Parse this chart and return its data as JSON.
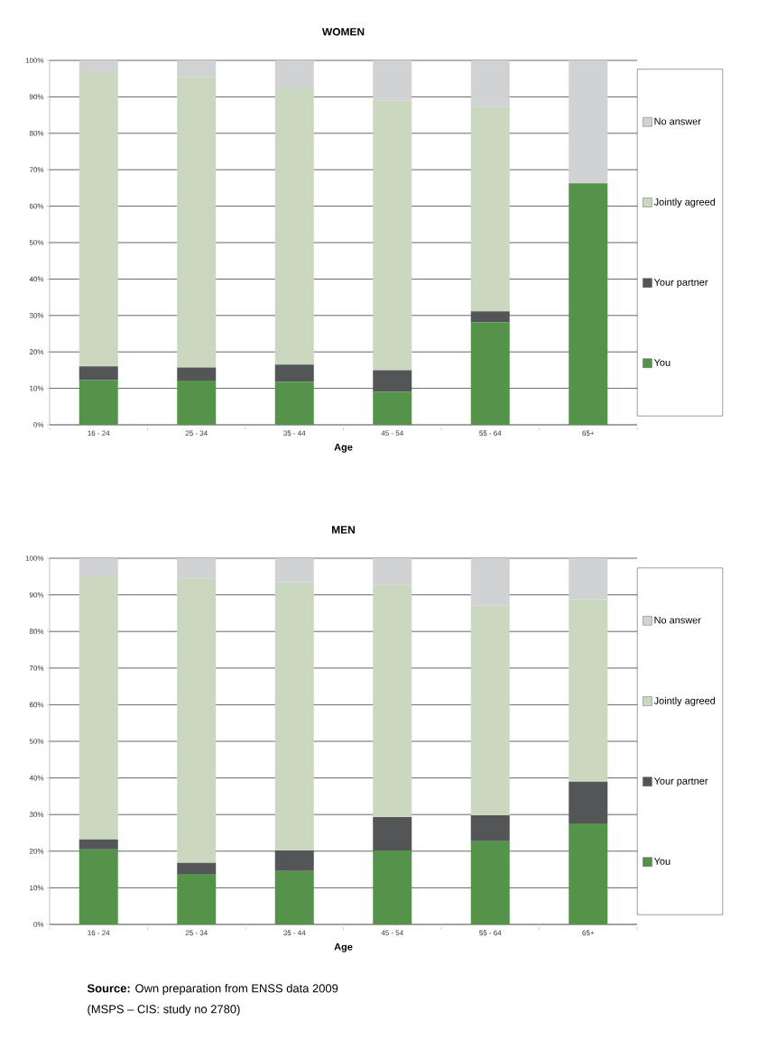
{
  "chart_data": [
    {
      "type": "bar",
      "title": "WOMEN",
      "xlabel": "Age",
      "stacked": true,
      "grid": "y",
      "legend": "right",
      "categories": [
        "16 - 24",
        "25 - 34",
        "35 - 44",
        "45 - 54",
        "55 - 64",
        "65+"
      ],
      "ylim": [
        0,
        100
      ],
      "yticks": [
        {
          "value": 0,
          "label": "0%"
        },
        {
          "value": 10,
          "label": "10%"
        },
        {
          "value": 20,
          "label": "20%"
        },
        {
          "value": 30,
          "label": "30%"
        },
        {
          "value": 40,
          "label": "40%"
        },
        {
          "value": 50,
          "label": "50%"
        },
        {
          "value": 60,
          "label": "60%"
        },
        {
          "value": 70,
          "label": "70%"
        },
        {
          "value": 80,
          "label": "80%"
        },
        {
          "value": 90,
          "label": "90%"
        },
        {
          "value": 100,
          "label": "100%"
        }
      ],
      "series": [
        {
          "name": "You",
          "color": "#55924a",
          "values": [
            12.3,
            12.1,
            11.8,
            9.1,
            28.1,
            66.3
          ]
        },
        {
          "name": "Your partner",
          "color": "#545557",
          "values": [
            3.7,
            3.6,
            4.7,
            5.9,
            3.0,
            0
          ]
        },
        {
          "name": "Jointly agreed",
          "color": "#c9d8bf",
          "values": [
            80.8,
            79.7,
            75.8,
            73.9,
            56.2,
            0
          ]
        },
        {
          "name": "No answer",
          "color": "#d1d2d4",
          "values": [
            3.2,
            4.6,
            7.7,
            11.1,
            12.7,
            33.7
          ]
        }
      ]
    },
    {
      "type": "bar",
      "title": "MEN",
      "xlabel": "Age",
      "stacked": true,
      "grid": "y",
      "legend": "right",
      "categories": [
        "16 - 24",
        "25 - 34",
        "35 - 44",
        "45 - 54",
        "55 - 64",
        "65+"
      ],
      "ylim": [
        0,
        100
      ],
      "yticks": [
        {
          "value": 0,
          "label": "0%"
        },
        {
          "value": 10,
          "label": "10%"
        },
        {
          "value": 20,
          "label": "20%"
        },
        {
          "value": 30,
          "label": "30%"
        },
        {
          "value": 40,
          "label": "40%"
        },
        {
          "value": 50,
          "label": "50%"
        },
        {
          "value": 60,
          "label": "60%"
        },
        {
          "value": 70,
          "label": "70%"
        },
        {
          "value": 80,
          "label": "80%"
        },
        {
          "value": 90,
          "label": "90%"
        },
        {
          "value": 100,
          "label": "100%"
        }
      ],
      "series": [
        {
          "name": "You",
          "color": "#55924a",
          "values": [
            20.5,
            13.8,
            14.6,
            20.2,
            22.7,
            27.6
          ]
        },
        {
          "name": "Your partner",
          "color": "#545557",
          "values": [
            2.7,
            3.0,
            5.6,
            9.1,
            7.1,
            11.4
          ]
        },
        {
          "name": "Jointly agreed",
          "color": "#c9d8bf",
          "values": [
            71.9,
            77.6,
            73.2,
            63.4,
            57.2,
            49.7
          ]
        },
        {
          "name": "No answer",
          "color": "#d1d2d4",
          "values": [
            4.9,
            5.6,
            6.6,
            7.3,
            13.0,
            11.3
          ]
        }
      ],
      "annotations": [
        "**Source:** Own preparation from ENSS data 2009",
        "(MSPS – CIS: study no 2780)"
      ]
    }
  ]
}
